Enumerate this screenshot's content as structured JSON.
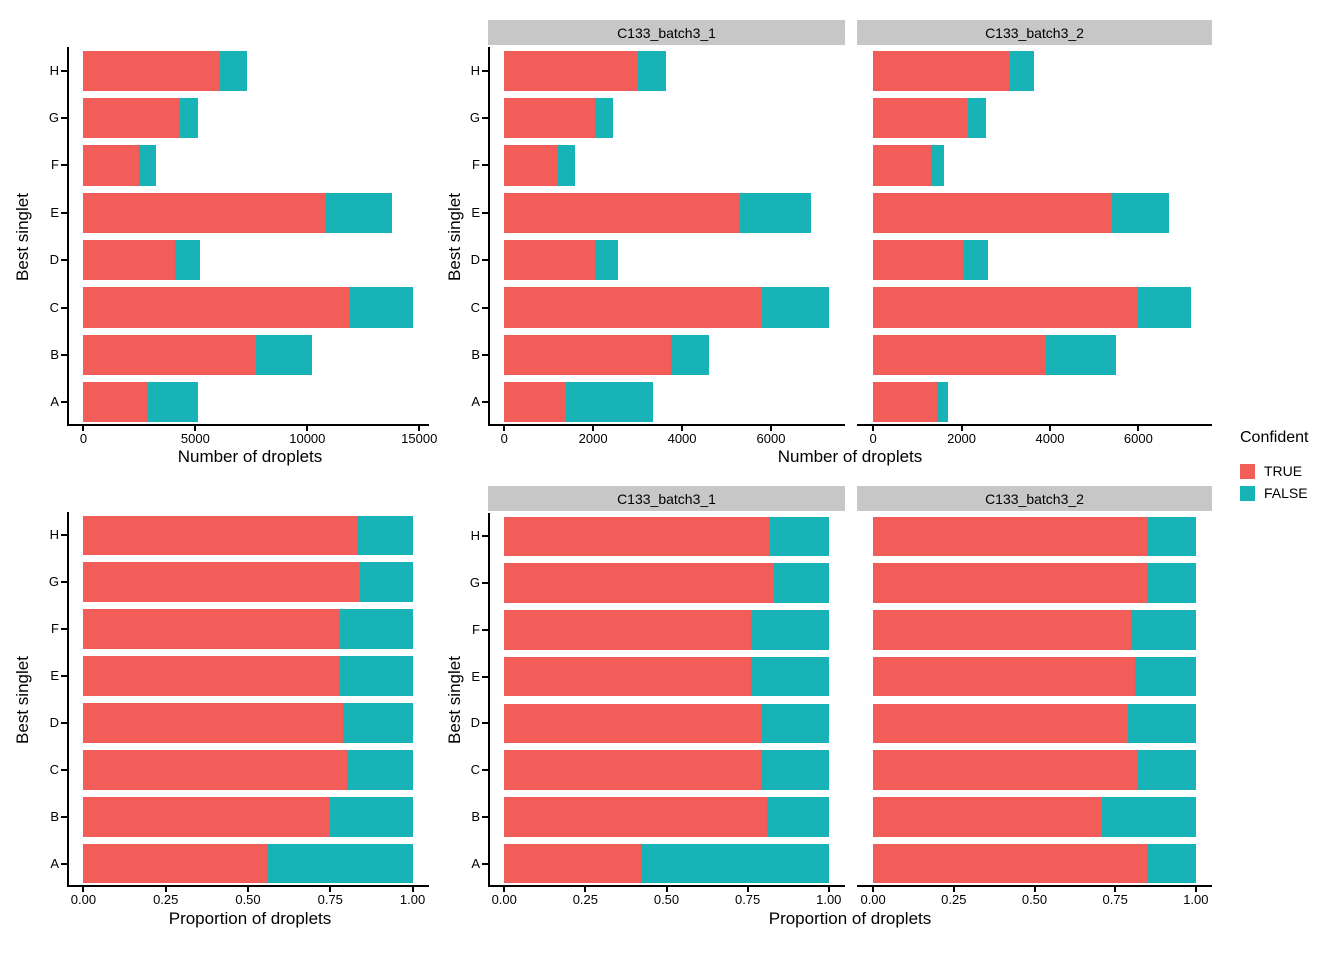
{
  "figure": {
    "background": "#FFFFFF",
    "colors": {
      "confident_true": "#F25D5A",
      "confident_false": "#18B3B7",
      "strip_bg": "#C7C7C7",
      "axis": "#000000"
    },
    "legend": {
      "title": "Confident",
      "items": [
        {
          "label": "TRUE",
          "color": "#F25D5A"
        },
        {
          "label": "FALSE",
          "color": "#18B3B7"
        }
      ]
    }
  },
  "chart_data": [
    {
      "id": "droplet-counts-overall",
      "type": "bar",
      "orientation": "horizontal",
      "stacked": true,
      "legend_series": [
        "TRUE",
        "FALSE"
      ],
      "xlabel": "Number of droplets",
      "ylabel": "Best singlet",
      "categories": [
        "H",
        "G",
        "F",
        "E",
        "D",
        "C",
        "B",
        "A"
      ],
      "xmax": 14700,
      "xticks": [
        {
          "value": 0,
          "label": "0"
        },
        {
          "value": 5000,
          "label": "5000"
        },
        {
          "value": 10000,
          "label": "10000"
        },
        {
          "value": 15000,
          "label": "15000"
        }
      ],
      "panels": [
        {
          "facet": "",
          "true_values": [
            6100,
            4300,
            2500,
            10800,
            4100,
            11900,
            7700,
            2900
          ],
          "false_values": [
            1200,
            800,
            750,
            3000,
            1100,
            2800,
            2500,
            2200
          ]
        }
      ]
    },
    {
      "id": "droplet-counts-by-batch",
      "type": "bar",
      "orientation": "horizontal",
      "stacked": true,
      "legend_series": [
        "TRUE",
        "FALSE"
      ],
      "xlabel": "Number of droplets",
      "ylabel": "Best singlet",
      "categories": [
        "H",
        "G",
        "F",
        "E",
        "D",
        "C",
        "B",
        "A"
      ],
      "xmax": 7300,
      "xticks": [
        {
          "value": 0,
          "label": "0"
        },
        {
          "value": 2000,
          "label": "2000"
        },
        {
          "value": 4000,
          "label": "4000"
        },
        {
          "value": 6000,
          "label": "6000"
        }
      ],
      "panels": [
        {
          "facet": "C133_batch3_1",
          "true_values": [
            3000,
            2050,
            1200,
            5300,
            2050,
            5800,
            3750,
            1400
          ],
          "false_values": [
            650,
            400,
            400,
            1600,
            500,
            1500,
            850,
            1950
          ]
        },
        {
          "facet": "C133_batch3_2",
          "true_values": [
            3100,
            2150,
            1300,
            5400,
            2050,
            6000,
            3900,
            1450
          ],
          "false_values": [
            550,
            400,
            300,
            1300,
            550,
            1200,
            1600,
            250
          ]
        }
      ]
    },
    {
      "id": "droplet-proportions-overall",
      "type": "bar",
      "orientation": "horizontal",
      "stacked": true,
      "legend_series": [
        "TRUE",
        "FALSE"
      ],
      "xlabel": "Proportion of droplets",
      "ylabel": "Best singlet",
      "categories": [
        "H",
        "G",
        "F",
        "E",
        "D",
        "C",
        "B",
        "A"
      ],
      "xmax": 1,
      "xticks": [
        {
          "value": 0,
          "label": "0.00"
        },
        {
          "value": 0.25,
          "label": "0.25"
        },
        {
          "value": 0.5,
          "label": "0.50"
        },
        {
          "value": 0.75,
          "label": "0.75"
        },
        {
          "value": 1,
          "label": "1.00"
        }
      ],
      "panels": [
        {
          "facet": "",
          "true_values": [
            0.83,
            0.84,
            0.78,
            0.78,
            0.79,
            0.8,
            0.75,
            0.56
          ],
          "false_values": [
            0.17,
            0.16,
            0.22,
            0.22,
            0.21,
            0.2,
            0.25,
            0.44
          ]
        }
      ]
    },
    {
      "id": "droplet-proportions-by-batch",
      "type": "bar",
      "orientation": "horizontal",
      "stacked": true,
      "legend_series": [
        "TRUE",
        "FALSE"
      ],
      "xlabel": "Proportion of droplets",
      "ylabel": "Best singlet",
      "categories": [
        "H",
        "G",
        "F",
        "E",
        "D",
        "C",
        "B",
        "A"
      ],
      "xmax": 1,
      "xticks": [
        {
          "value": 0,
          "label": "0.00"
        },
        {
          "value": 0.25,
          "label": "0.25"
        },
        {
          "value": 0.5,
          "label": "0.50"
        },
        {
          "value": 0.75,
          "label": "0.75"
        },
        {
          "value": 1,
          "label": "1.00"
        }
      ],
      "panels": [
        {
          "facet": "C133_batch3_1",
          "true_values": [
            0.82,
            0.83,
            0.76,
            0.76,
            0.79,
            0.79,
            0.81,
            0.42
          ],
          "false_values": [
            0.18,
            0.17,
            0.24,
            0.24,
            0.21,
            0.21,
            0.19,
            0.58
          ]
        },
        {
          "facet": "C133_batch3_2",
          "true_values": [
            0.85,
            0.85,
            0.8,
            0.81,
            0.79,
            0.82,
            0.71,
            0.85
          ],
          "false_values": [
            0.15,
            0.15,
            0.2,
            0.19,
            0.21,
            0.18,
            0.29,
            0.15
          ]
        }
      ]
    }
  ]
}
